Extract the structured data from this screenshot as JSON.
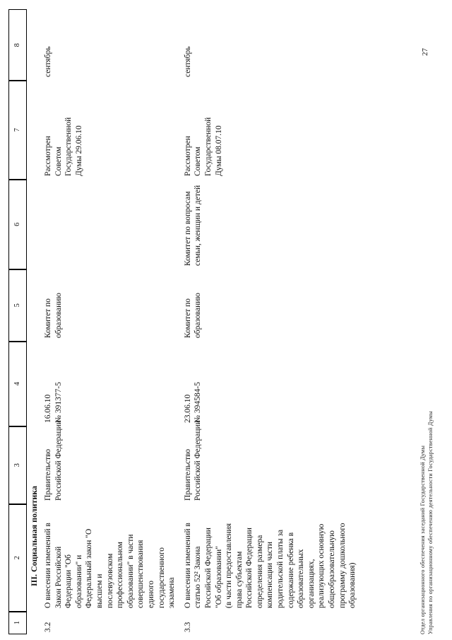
{
  "page": {
    "number": "27"
  },
  "footer": {
    "line1": "Отдел организационного обеспечения заседаний Государственной Думы",
    "line2": "Управления по организационному обеспечению деятельности Государственной Думы"
  },
  "table": {
    "header_numbers": [
      "1",
      "2",
      "3",
      "4",
      "5",
      "6",
      "7",
      "8"
    ],
    "section_title": "III. Социальная политика",
    "rows": [
      {
        "num": "3.2",
        "title": "О внесении изменений в\nЗакон Российской\nФедерации \"Об\nобразовании\" и\nФедеральный закон \"О\nвысшем и\nпослевузовском\nпрофессиональном\nобразовании\" в части\nсовершенствования\nединого\nгосударственного\nэкзамена",
        "initiator": "Правительство\nРоссийской Федерации",
        "date_number": "16.06.10\n№ 391377-5",
        "responsible_committee": "Комитет по\nобразованию",
        "co_committee": "",
        "council_review": "Рассмотрен\nСоветом\nГосударственной\nДумы 29.06.10",
        "month": "сентябрь"
      },
      {
        "num": "3.3",
        "title": "О внесении изменений в\nстатью 52² Закона\nРоссийской Федерации\n\"Об образовании\"\n(в части предоставления\nправа субъектам\nРоссийской Федерации\nопределения размера\nкомпенсации части\nродительской платы за\nсодержание ребенка в\nобразовательных\nорганизациях,\nреализующих основную\nобщеобразовательную\nпрограмму дошкольного\nобразования)",
        "initiator": "Правительство\nРоссийской Федерации",
        "date_number": "23.06.10\n№ 394584-5",
        "responsible_committee": "Комитет по\nобразованию",
        "co_committee": "Комитет по вопросам\nсемьи, женщин и детей",
        "council_review": "Рассмотрен\nСоветом\nГосударственной\nДумы 08.07.10",
        "month": "сентябрь"
      }
    ]
  }
}
